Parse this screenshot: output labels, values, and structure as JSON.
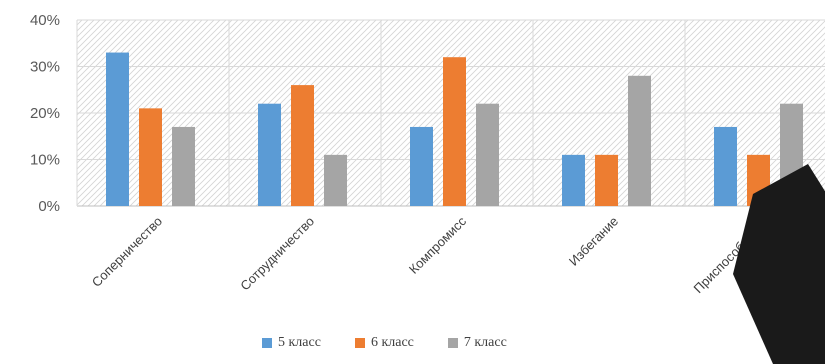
{
  "chart_data": {
    "type": "bar",
    "categories": [
      "Соперничество",
      "Сотрудничество",
      "Компромисс",
      "Избегание",
      "Приспособление"
    ],
    "series": [
      {
        "name": "5 класс",
        "values": [
          33,
          22,
          17,
          11,
          17
        ],
        "color": "#5b9bd5"
      },
      {
        "name": "6 класс",
        "values": [
          21,
          26,
          32,
          11,
          11
        ],
        "color": "#ed7d31"
      },
      {
        "name": "7 класс",
        "values": [
          17,
          11,
          22,
          28,
          22
        ],
        "color": "#a5a5a5"
      }
    ],
    "yticks": [
      "0%",
      "10%",
      "20%",
      "30%",
      "40%"
    ],
    "ylim": [
      0,
      40
    ],
    "grid": true,
    "legend_position": "bottom",
    "background": "diagonal-hatch"
  }
}
